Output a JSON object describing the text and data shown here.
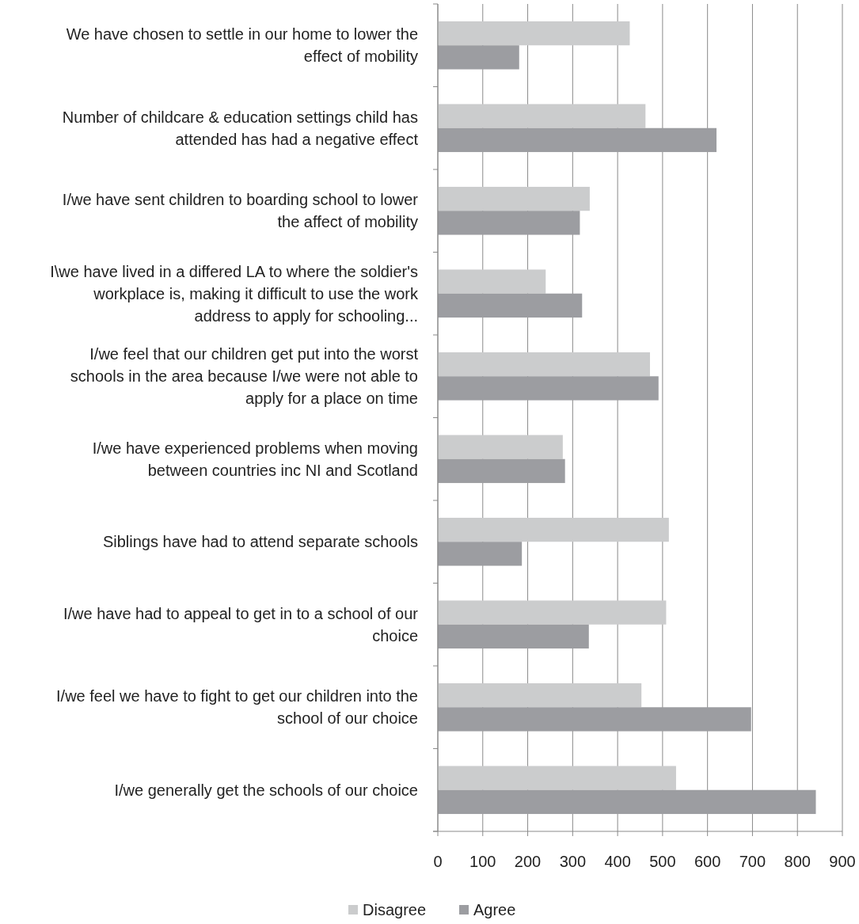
{
  "chart_data": {
    "type": "bar",
    "orientation": "horizontal",
    "categories": [
      "We have chosen to settle in our home to lower the effect of mobility",
      "Number of childcare & education settings child has attended has had a negative effect",
      "I/we have sent children to boarding school to lower the affect of mobility",
      "I\\we have lived in a differed LA to where the soldier's workplace is, making it difficult to use the work address to apply for schooling...",
      "I/we feel that our children get put into the worst schools in the area because I/we were not able to apply for a place on time",
      "I/we have experienced problems when moving between countries inc NI and Scotland",
      "Siblings have had to attend separate schools",
      "I/we have had to appeal to get in to a school of our choice",
      "I/we feel we have to fight to get our children into the school of our choice",
      "I/we generally get the schools of our choice"
    ],
    "series": [
      {
        "name": "Disagree",
        "color": "#cbcccd",
        "values": [
          427,
          462,
          338,
          240,
          472,
          278,
          514,
          508,
          453,
          530
        ]
      },
      {
        "name": "Agree",
        "color": "#9c9da1",
        "values": [
          181,
          620,
          316,
          321,
          491,
          283,
          187,
          336,
          697,
          841
        ]
      }
    ],
    "xlim": [
      0,
      900
    ],
    "xticks": [
      0,
      100,
      200,
      300,
      400,
      500,
      600,
      700,
      800,
      900
    ],
    "grid": "x",
    "legend": "bottom"
  }
}
